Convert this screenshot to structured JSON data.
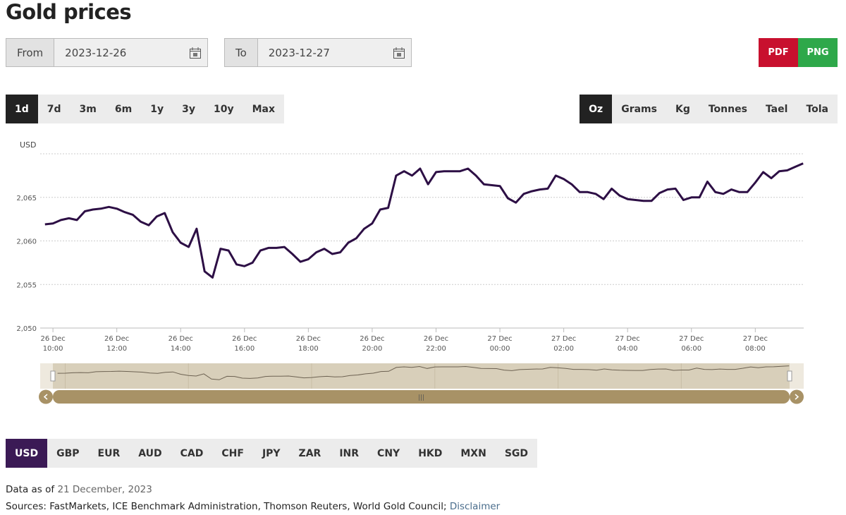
{
  "title": "Gold prices",
  "date_range": {
    "from_label": "From",
    "from": "2023-12-26",
    "to_label": "To",
    "to": "2023-12-27"
  },
  "export_buttons": [
    "PDF",
    "PNG"
  ],
  "periods": {
    "options": [
      "1d",
      "7d",
      "3m",
      "6m",
      "1y",
      "3y",
      "10y",
      "Max"
    ],
    "selected": 0
  },
  "units": {
    "options": [
      "Oz",
      "Grams",
      "Kg",
      "Tonnes",
      "Tael",
      "Tola"
    ],
    "selected": 0
  },
  "currencies": {
    "options": [
      "USD",
      "GBP",
      "EUR",
      "AUD",
      "CAD",
      "CHF",
      "JPY",
      "ZAR",
      "INR",
      "CNY",
      "HKD",
      "MXN",
      "SGD"
    ],
    "selected": 0
  },
  "footer": {
    "data_as_of_label": "Data as of",
    "data_as_of": "21 December, 2023",
    "sources": "Sources: FastMarkets, ICE Benchmark Administration, Thomson Reuters, World Gold Council;",
    "disclaimer": "Disclaimer"
  },
  "chart_data": {
    "type": "line",
    "y_label": "USD",
    "color": "#2d0f45",
    "grid": true,
    "x": [
      "2023-12-26T09:45",
      "2023-12-26T10:00",
      "2023-12-26T10:15",
      "2023-12-26T10:30",
      "2023-12-26T10:45",
      "2023-12-26T11:00",
      "2023-12-26T11:15",
      "2023-12-26T11:30",
      "2023-12-26T11:45",
      "2023-12-26T12:00",
      "2023-12-26T12:15",
      "2023-12-26T12:30",
      "2023-12-26T12:45",
      "2023-12-26T13:00",
      "2023-12-26T13:15",
      "2023-12-26T13:30",
      "2023-12-26T13:45",
      "2023-12-26T14:00",
      "2023-12-26T14:15",
      "2023-12-26T14:30",
      "2023-12-26T14:45",
      "2023-12-26T15:00",
      "2023-12-26T15:15",
      "2023-12-26T15:30",
      "2023-12-26T15:45",
      "2023-12-26T16:00",
      "2023-12-26T16:15",
      "2023-12-26T16:30",
      "2023-12-26T16:45",
      "2023-12-26T17:00",
      "2023-12-26T17:15",
      "2023-12-26T17:30",
      "2023-12-26T17:45",
      "2023-12-26T18:00",
      "2023-12-26T18:15",
      "2023-12-26T18:30",
      "2023-12-26T18:45",
      "2023-12-26T19:00",
      "2023-12-26T19:15",
      "2023-12-26T19:30",
      "2023-12-26T19:45",
      "2023-12-26T20:00",
      "2023-12-26T20:15",
      "2023-12-26T20:30",
      "2023-12-26T20:45",
      "2023-12-26T21:00",
      "2023-12-26T21:15",
      "2023-12-26T21:30",
      "2023-12-26T21:45",
      "2023-12-26T22:00",
      "2023-12-26T22:15",
      "2023-12-26T22:30",
      "2023-12-26T22:45",
      "2023-12-26T23:00",
      "2023-12-26T23:15",
      "2023-12-26T23:30",
      "2023-12-26T23:45",
      "2023-12-27T00:00",
      "2023-12-27T00:15",
      "2023-12-27T00:30",
      "2023-12-27T00:45",
      "2023-12-27T01:00",
      "2023-12-27T01:15",
      "2023-12-27T01:30",
      "2023-12-27T01:45",
      "2023-12-27T02:00",
      "2023-12-27T02:15",
      "2023-12-27T02:30",
      "2023-12-27T02:45",
      "2023-12-27T03:00",
      "2023-12-27T03:15",
      "2023-12-27T03:30",
      "2023-12-27T03:45",
      "2023-12-27T04:00",
      "2023-12-27T04:15",
      "2023-12-27T04:30",
      "2023-12-27T04:45",
      "2023-12-27T05:00",
      "2023-12-27T05:15",
      "2023-12-27T05:30",
      "2023-12-27T05:45",
      "2023-12-27T06:00",
      "2023-12-27T06:15",
      "2023-12-27T06:30",
      "2023-12-27T06:45",
      "2023-12-27T07:00",
      "2023-12-27T07:15",
      "2023-12-27T07:30",
      "2023-12-27T07:45",
      "2023-12-27T08:00",
      "2023-12-27T08:15",
      "2023-12-27T08:30",
      "2023-12-27T08:45",
      "2023-12-27T09:00",
      "2023-12-27T09:15",
      "2023-12-27T09:30"
    ],
    "values": [
      2061.9,
      2062.0,
      2062.4,
      2062.6,
      2062.4,
      2063.4,
      2063.6,
      2063.7,
      2063.9,
      2063.7,
      2063.3,
      2063.0,
      2062.2,
      2061.8,
      2062.8,
      2063.2,
      2061.0,
      2059.8,
      2059.3,
      2061.4,
      2056.5,
      2055.8,
      2059.1,
      2058.9,
      2057.3,
      2057.1,
      2057.5,
      2058.9,
      2059.2,
      2059.2,
      2059.3,
      2058.5,
      2057.6,
      2057.9,
      2058.7,
      2059.1,
      2058.5,
      2058.7,
      2059.8,
      2060.3,
      2061.4,
      2062.0,
      2063.6,
      2063.8,
      2067.5,
      2068.0,
      2067.5,
      2068.3,
      2066.5,
      2067.9,
      2068.0,
      2068.0,
      2068.0,
      2068.3,
      2067.5,
      2066.5,
      2066.4,
      2066.3,
      2064.9,
      2064.4,
      2065.4,
      2065.7,
      2065.9,
      2066.0,
      2067.5,
      2067.1,
      2066.5,
      2065.6,
      2065.6,
      2065.4,
      2064.8,
      2066.0,
      2065.2,
      2064.8,
      2064.7,
      2064.6,
      2064.6,
      2065.5,
      2065.9,
      2066.0,
      2064.7,
      2065.0,
      2065.0,
      2066.8,
      2065.6,
      2065.4,
      2065.9,
      2065.6,
      2065.6,
      2066.7,
      2067.9,
      2067.2,
      2068.0,
      2068.1,
      2068.5,
      2068.9
    ],
    "xlim": [
      "2023-12-26T09:36",
      "2023-12-27T09:31"
    ],
    "xticks": [
      {
        "value": "2023-12-26T10:00",
        "label": [
          "26 Dec",
          "10:00"
        ]
      },
      {
        "value": "2023-12-26T12:00",
        "label": [
          "26 Dec",
          "12:00"
        ]
      },
      {
        "value": "2023-12-26T14:00",
        "label": [
          "26 Dec",
          "14:00"
        ]
      },
      {
        "value": "2023-12-26T16:00",
        "label": [
          "26 Dec",
          "16:00"
        ]
      },
      {
        "value": "2023-12-26T18:00",
        "label": [
          "26 Dec",
          "18:00"
        ]
      },
      {
        "value": "2023-12-26T20:00",
        "label": [
          "26 Dec",
          "20:00"
        ]
      },
      {
        "value": "2023-12-26T22:00",
        "label": [
          "26 Dec",
          "22:00"
        ]
      },
      {
        "value": "2023-12-27T00:00",
        "label": [
          "27 Dec",
          "00:00"
        ]
      },
      {
        "value": "2023-12-27T02:00",
        "label": [
          "27 Dec",
          "02:00"
        ]
      },
      {
        "value": "2023-12-27T04:00",
        "label": [
          "27 Dec",
          "04:00"
        ]
      },
      {
        "value": "2023-12-27T06:00",
        "label": [
          "27 Dec",
          "06:00"
        ]
      },
      {
        "value": "2023-12-27T08:00",
        "label": [
          "27 Dec",
          "08:00"
        ]
      }
    ],
    "ylim": [
      2050,
      2070
    ],
    "yticks": [
      {
        "value": 2050,
        "label": "2,050"
      },
      {
        "value": 2055,
        "label": "2,055"
      },
      {
        "value": 2060,
        "label": "2,060"
      },
      {
        "value": 2065,
        "label": "2,065"
      }
    ]
  }
}
